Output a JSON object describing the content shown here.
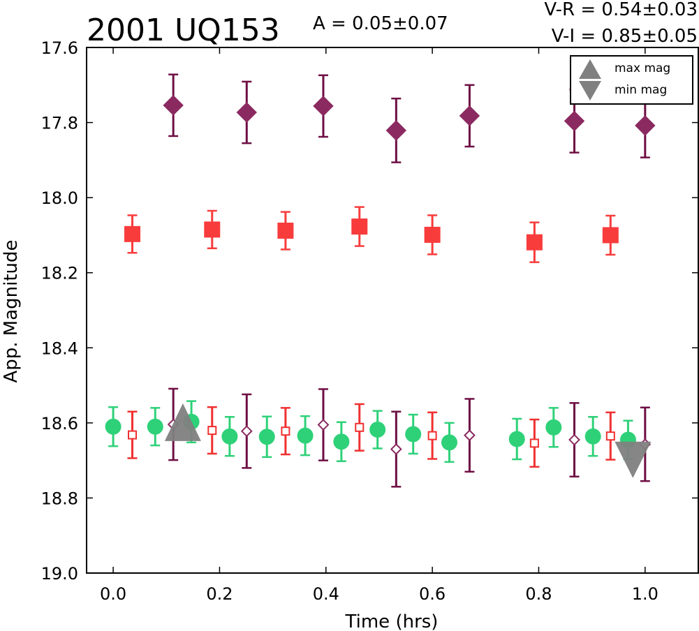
{
  "chart_data": {
    "type": "scatter",
    "title": "2001 UQ153",
    "annotations": {
      "amplitude": "A  = 0.05±0.07",
      "v_r": "V-R = 0.54±0.03",
      "v_i": "V-I  = 0.85±0.05"
    },
    "xlabel": "Time (hrs)",
    "ylabel": "App. Magnitude",
    "xlim": [
      -0.05,
      1.1
    ],
    "ylim": [
      19.0,
      17.6
    ],
    "y_inverted": true,
    "xticks": [
      "0.0",
      "0.2",
      "0.4",
      "0.6",
      "0.8",
      "1.0"
    ],
    "xtick_values": [
      0.0,
      0.2,
      0.4,
      0.6,
      0.8,
      1.0
    ],
    "yticks": [
      "17.6",
      "17.8",
      "18.0",
      "18.2",
      "18.4",
      "18.6",
      "18.8",
      "19.0"
    ],
    "ytick_values": [
      17.6,
      17.8,
      18.0,
      18.2,
      18.4,
      18.6,
      18.8,
      19.0
    ],
    "grid": false,
    "legend": {
      "placement": "top-right",
      "entries": [
        {
          "label": "max mag",
          "marker": "triangle-up",
          "color": "#808080"
        },
        {
          "label": "min mag",
          "marker": "triangle-down",
          "color": "#808080"
        }
      ]
    },
    "series": [
      {
        "marker": "diamond",
        "filled": true,
        "color": "#8b2a60",
        "errcolor": "#6e0f44",
        "x": [
          0.113,
          0.251,
          0.395,
          0.532,
          0.67,
          0.867,
          1.0
        ],
        "y": [
          17.754,
          17.773,
          17.756,
          17.821,
          17.782,
          17.796,
          17.808
        ],
        "err": [
          0.082,
          0.082,
          0.082,
          0.085,
          0.082,
          0.084,
          0.085
        ]
      },
      {
        "marker": "square",
        "filled": true,
        "color": "#f83c3c",
        "errcolor": "#f83c3c",
        "x": [
          0.036,
          0.186,
          0.324,
          0.463,
          0.6,
          0.792,
          0.935
        ],
        "y": [
          18.097,
          18.085,
          18.088,
          18.077,
          18.099,
          18.119,
          18.1
        ],
        "err": [
          0.05,
          0.05,
          0.05,
          0.052,
          0.052,
          0.053,
          0.052
        ]
      },
      {
        "marker": "circle",
        "filled": true,
        "color": "#2ed178",
        "errcolor": "#2ed178",
        "x": [
          0.0,
          0.079,
          0.147,
          0.219,
          0.289,
          0.361,
          0.429,
          0.497,
          0.564,
          0.632,
          0.759,
          0.828,
          0.902,
          0.968
        ],
        "y": [
          18.61,
          18.61,
          18.597,
          18.636,
          18.637,
          18.634,
          18.65,
          18.618,
          18.63,
          18.652,
          18.643,
          18.612,
          18.636,
          18.645
        ],
        "err": [
          0.052,
          0.05,
          0.055,
          0.052,
          0.054,
          0.052,
          0.052,
          0.05,
          0.052,
          0.052,
          0.054,
          0.052,
          0.052,
          0.051
        ]
      },
      {
        "marker": "square",
        "filled": false,
        "color": "#f03030",
        "errcolor": "#f03030",
        "x": [
          0.036,
          0.186,
          0.324,
          0.463,
          0.6,
          0.792,
          0.935
        ],
        "y": [
          18.632,
          18.62,
          18.622,
          18.612,
          18.634,
          18.654,
          18.635
        ],
        "err": [
          0.062,
          0.062,
          0.062,
          0.062,
          0.062,
          0.063,
          0.063
        ]
      },
      {
        "marker": "diamond",
        "filled": false,
        "color": "#8b2a60",
        "errcolor": "#6e0f44",
        "x": [
          0.113,
          0.251,
          0.395,
          0.532,
          0.67,
          0.867,
          1.0
        ],
        "y": [
          18.604,
          18.622,
          18.605,
          18.67,
          18.633,
          18.645,
          18.657
        ],
        "err": [
          0.095,
          0.098,
          0.095,
          0.1,
          0.097,
          0.098,
          0.098
        ]
      }
    ],
    "extrema": [
      {
        "label": "max mag",
        "marker": "triangle-up",
        "color": "#808080",
        "x": 0.131,
        "y": 18.6
      },
      {
        "label": "min mag",
        "marker": "triangle-down",
        "color": "#808080",
        "x": 0.977,
        "y": 18.65
      }
    ]
  }
}
